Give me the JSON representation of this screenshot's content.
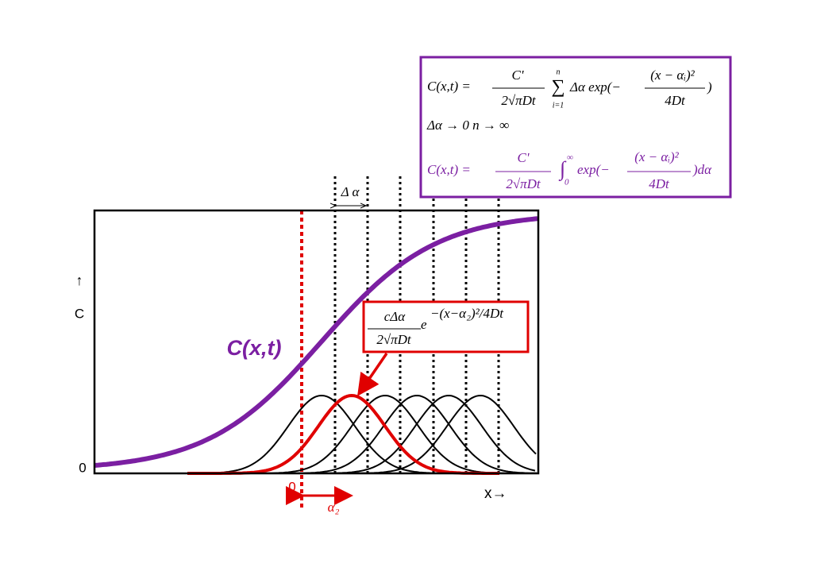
{
  "equation_box": {
    "eq1": {
      "lhs": "C(x,t) =",
      "frac_num": "C'",
      "frac_den": "2√πDt",
      "sum_top": "n",
      "sum_sign": "∑",
      "sum_bottom": "i=1",
      "body": "Δα exp(−",
      "exp_num": "(x − αᵢ)²",
      "exp_den": "4Dt",
      "close": ")"
    },
    "eq2": "Δα → 0    n → ∞",
    "eq3": {
      "lhs": "C(x,t) =",
      "frac_num": "C'",
      "frac_den": "2√πDt",
      "integral": "∫",
      "int_top": "∞",
      "int_bottom": "0",
      "body": "exp(−",
      "exp_num": "(x − αᵢ)²",
      "exp_den": "4Dt",
      "close": ")dα"
    }
  },
  "delta_alpha_label": "Δ α",
  "y_axis": {
    "arrow": "↑",
    "label": "C",
    "zero": "0"
  },
  "curve_label": "C(x,t)",
  "term_box": {
    "num": "cΔα",
    "den": "2√πDt",
    "base": "e",
    "exponent": "−(x−α₂)²/4Dt"
  },
  "x_axis": {
    "label": "x→",
    "origin": "0"
  },
  "alpha2_label": "α₂"
}
